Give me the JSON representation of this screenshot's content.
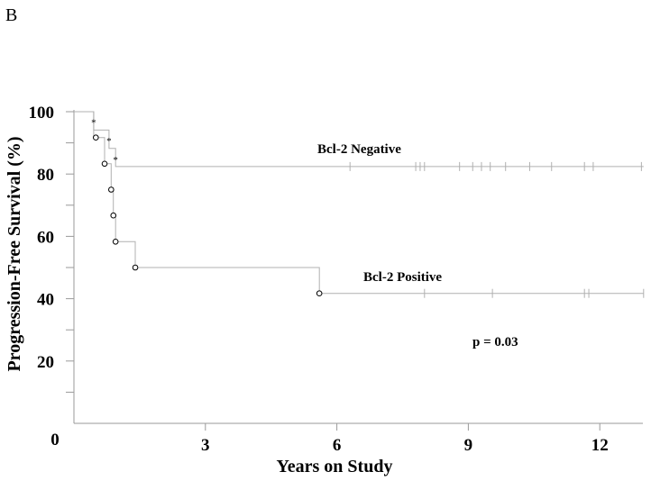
{
  "panel_label": "B",
  "chart_data": {
    "type": "line",
    "subtype": "kaplan-meier",
    "xlabel": "Years on Study",
    "ylabel": "Progression-Free Survival (%)",
    "xlim": [
      0,
      13
    ],
    "ylim": [
      0,
      100
    ],
    "xticks": [
      3,
      6,
      9,
      12
    ],
    "yticks": [
      20,
      40,
      60,
      80,
      100
    ],
    "origin_label": "0",
    "grid": false,
    "series": [
      {
        "name": "Bcl-2 Negative",
        "color": "#b0b0b0",
        "steps": [
          [
            0,
            100
          ],
          [
            0.45,
            100
          ],
          [
            0.45,
            94.1
          ],
          [
            0.8,
            94.1
          ],
          [
            0.8,
            88.2
          ],
          [
            0.95,
            88.2
          ],
          [
            0.95,
            82.4
          ],
          [
            13,
            82.4
          ]
        ],
        "events": [
          {
            "x": 0.45,
            "y": 97
          },
          {
            "x": 0.8,
            "y": 91
          },
          {
            "x": 0.95,
            "y": 85
          }
        ],
        "censored": [
          6.3,
          7.8,
          7.9,
          8.0,
          8.8,
          9.1,
          9.3,
          9.5,
          9.85,
          10.4,
          10.9,
          11.65,
          11.85,
          12.95
        ]
      },
      {
        "name": "Bcl-2 Positive",
        "color": "#b0b0b0",
        "steps": [
          [
            0,
            100
          ],
          [
            0.45,
            100
          ],
          [
            0.45,
            91.7
          ],
          [
            0.7,
            91.7
          ],
          [
            0.7,
            83.3
          ],
          [
            0.85,
            83.3
          ],
          [
            0.85,
            75
          ],
          [
            0.9,
            75
          ],
          [
            0.9,
            66.7
          ],
          [
            0.95,
            66.7
          ],
          [
            0.95,
            58.3
          ],
          [
            1.4,
            58.3
          ],
          [
            1.4,
            50
          ],
          [
            5.6,
            50
          ],
          [
            5.6,
            41.7
          ],
          [
            13,
            41.7
          ]
        ],
        "events": [
          {
            "x": 0.5,
            "y": 91.7
          },
          {
            "x": 0.7,
            "y": 83.3
          },
          {
            "x": 0.85,
            "y": 75
          },
          {
            "x": 0.9,
            "y": 66.7
          },
          {
            "x": 0.95,
            "y": 58.3
          },
          {
            "x": 1.4,
            "y": 50
          },
          {
            "x": 5.6,
            "y": 41.7
          }
        ],
        "censored": [
          8.0,
          9.55,
          11.65,
          11.75,
          13.0
        ]
      }
    ],
    "annotations": {
      "negative_label": "Bcl-2 Negative",
      "positive_label": "Bcl-2 Positive",
      "pvalue": "p = 0.03"
    }
  }
}
